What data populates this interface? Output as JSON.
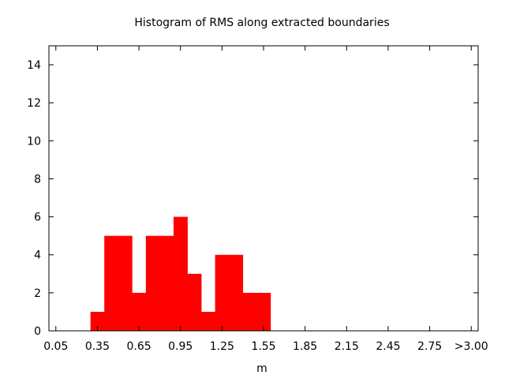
{
  "chart_data": {
    "type": "bar",
    "title": "Histogram of RMS along extracted boundaries",
    "xlabel": "m",
    "ylabel": "",
    "bin_width": 0.1,
    "x_ticks": [
      "0.05",
      "0.35",
      "0.65",
      "0.95",
      "1.25",
      "1.55",
      "1.85",
      "2.15",
      "2.45",
      "2.75",
      ">3.00"
    ],
    "x_tick_values": [
      0.05,
      0.35,
      0.65,
      0.95,
      1.25,
      1.55,
      1.85,
      2.15,
      2.45,
      2.75,
      3.05
    ],
    "xlim": [
      0.0,
      3.1
    ],
    "ylim": [
      0,
      15
    ],
    "y_ticks": [
      0,
      2,
      4,
      6,
      8,
      10,
      12,
      14
    ],
    "bins": [
      {
        "start": 0.3,
        "end": 0.4,
        "count": 1
      },
      {
        "start": 0.4,
        "end": 0.5,
        "count": 5
      },
      {
        "start": 0.5,
        "end": 0.6,
        "count": 5
      },
      {
        "start": 0.6,
        "end": 0.7,
        "count": 2
      },
      {
        "start": 0.7,
        "end": 0.8,
        "count": 5
      },
      {
        "start": 0.8,
        "end": 0.9,
        "count": 5
      },
      {
        "start": 0.9,
        "end": 1.0,
        "count": 6
      },
      {
        "start": 1.0,
        "end": 1.1,
        "count": 3
      },
      {
        "start": 1.1,
        "end": 1.2,
        "count": 1
      },
      {
        "start": 1.2,
        "end": 1.3,
        "count": 4
      },
      {
        "start": 1.3,
        "end": 1.4,
        "count": 4
      },
      {
        "start": 1.4,
        "end": 1.5,
        "count": 2
      },
      {
        "start": 1.5,
        "end": 1.6,
        "count": 2
      }
    ],
    "bar_color": "#ff0000",
    "grid": false,
    "legend": "none"
  }
}
